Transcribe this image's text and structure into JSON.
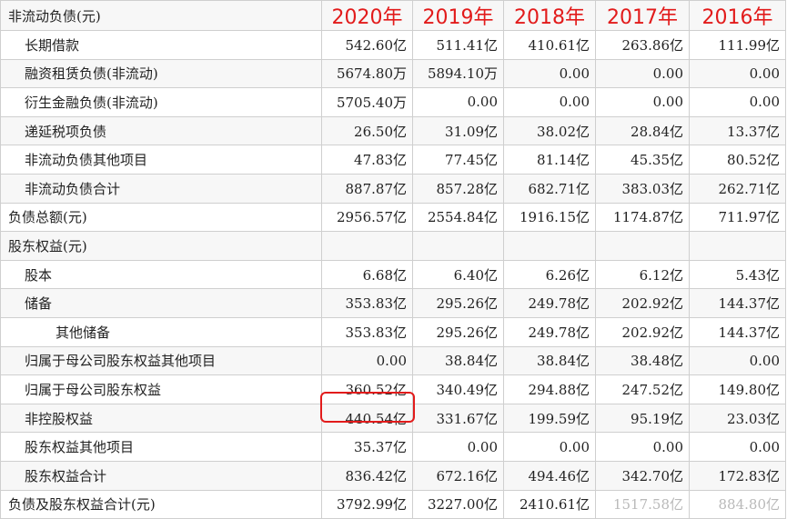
{
  "header": {
    "label": "非流动负债(元)",
    "years": [
      "2020年",
      "2019年",
      "2018年",
      "2017年",
      "2016年"
    ]
  },
  "rows": [
    {
      "label": "长期借款",
      "values": [
        "542.60亿",
        "511.41亿",
        "410.61亿",
        "263.86亿",
        "111.99亿"
      ]
    },
    {
      "label": "融资租赁负债(非流动)",
      "values": [
        "5674.80万",
        "5894.10万",
        "0.00",
        "0.00",
        "0.00"
      ]
    },
    {
      "label": "衍生金融负债(非流动)",
      "values": [
        "5705.40万",
        "0.00",
        "0.00",
        "0.00",
        "0.00"
      ]
    },
    {
      "label": "递延税项负债",
      "values": [
        "26.50亿",
        "31.09亿",
        "38.02亿",
        "28.84亿",
        "13.37亿"
      ]
    },
    {
      "label": "非流动负债其他项目",
      "values": [
        "47.83亿",
        "77.45亿",
        "81.14亿",
        "45.35亿",
        "80.52亿"
      ]
    },
    {
      "label": "非流动负债合计",
      "values": [
        "887.87亿",
        "857.28亿",
        "682.71亿",
        "383.03亿",
        "262.71亿"
      ]
    },
    {
      "label": "负债总额(元)",
      "values": [
        "2956.57亿",
        "2554.84亿",
        "1916.15亿",
        "1174.87亿",
        "711.97亿"
      ]
    },
    {
      "label": "股东权益(元)",
      "values": [
        "",
        "",
        "",
        "",
        ""
      ]
    },
    {
      "label": "股本",
      "values": [
        "6.68亿",
        "6.40亿",
        "6.26亿",
        "6.12亿",
        "5.43亿"
      ]
    },
    {
      "label": "储备",
      "values": [
        "353.83亿",
        "295.26亿",
        "249.78亿",
        "202.92亿",
        "144.37亿"
      ]
    },
    {
      "label": "其他储备",
      "values": [
        "353.83亿",
        "295.26亿",
        "249.78亿",
        "202.92亿",
        "144.37亿"
      ]
    },
    {
      "label": "归属于母公司股东权益其他项目",
      "values": [
        "0.00",
        "38.84亿",
        "38.84亿",
        "38.48亿",
        "0.00"
      ]
    },
    {
      "label": "归属于母公司股东权益",
      "values": [
        "360.52亿",
        "340.49亿",
        "294.88亿",
        "247.52亿",
        "149.80亿"
      ]
    },
    {
      "label": "非控股权益",
      "values": [
        "440.54亿",
        "331.67亿",
        "199.59亿",
        "95.19亿",
        "23.03亿"
      ]
    },
    {
      "label": "股东权益其他项目",
      "values": [
        "35.37亿",
        "0.00",
        "0.00",
        "0.00",
        "0.00"
      ]
    },
    {
      "label": "股东权益合计",
      "values": [
        "836.42亿",
        "672.16亿",
        "494.46亿",
        "342.70亿",
        "172.83亿"
      ]
    },
    {
      "label": "负债及股东权益合计(元)",
      "values": [
        "3792.99亿",
        "3227.00亿",
        "2410.61亿",
        "1517.58亿",
        "884.80亿"
      ]
    }
  ]
}
